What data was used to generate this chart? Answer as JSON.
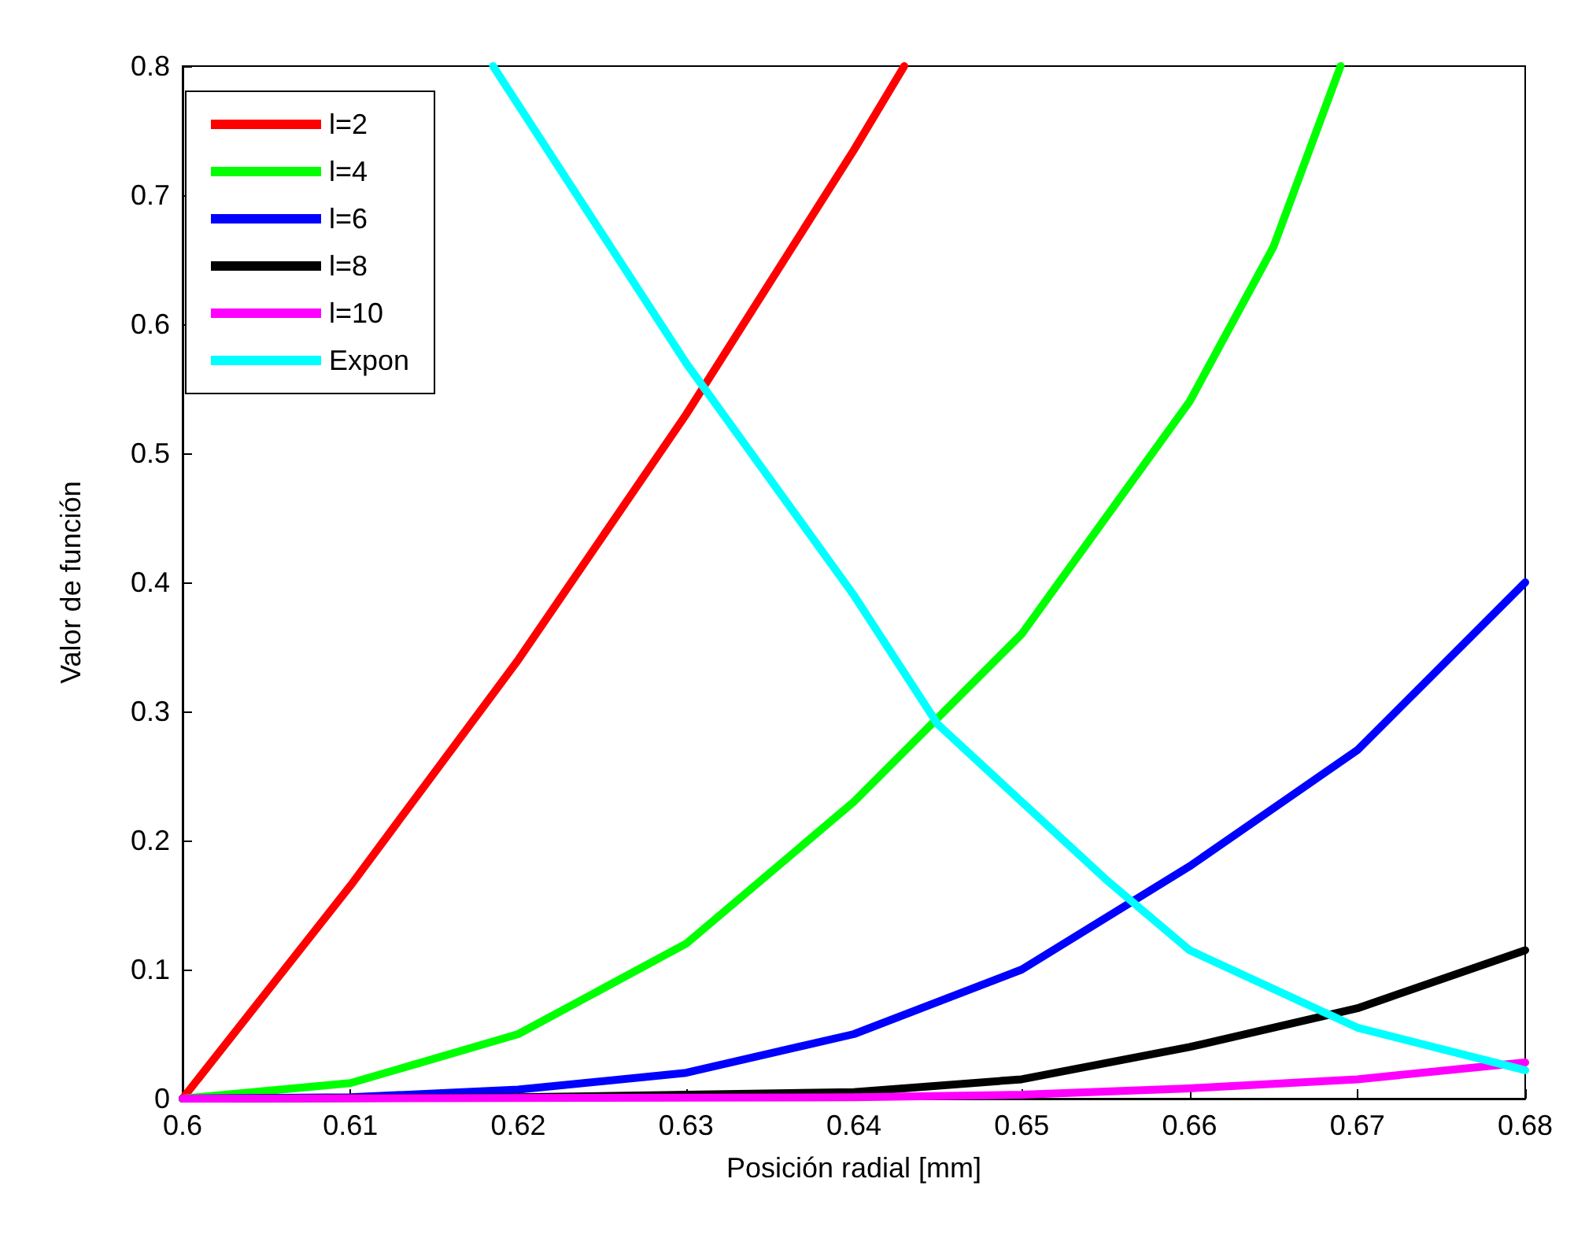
{
  "chart_data": {
    "type": "line",
    "xlabel": "Posición radial [mm]",
    "ylabel": "Valor de función",
    "xlim": [
      0.6,
      0.68
    ],
    "xticks": [
      0.6,
      0.61,
      0.62,
      0.63,
      0.64,
      0.65,
      0.66,
      0.67,
      0.68
    ],
    "ylim": [
      0,
      0.8
    ],
    "yticks": [
      0,
      0.1,
      0.2,
      0.3,
      0.4,
      0.5,
      0.6,
      0.7,
      0.8
    ],
    "grid": false,
    "legend": "top left",
    "marker": "none",
    "line_style": "solid",
    "series": [
      {
        "name": "l=2",
        "color": "#ff0000",
        "x": [
          0.6,
          0.61,
          0.62,
          0.63,
          0.64,
          0.643
        ],
        "values": [
          0,
          0.165,
          0.34,
          0.53,
          0.735,
          0.8
        ]
      },
      {
        "name": "l=4",
        "color": "#00ff00",
        "x": [
          0.6,
          0.61,
          0.62,
          0.63,
          0.64,
          0.65,
          0.66,
          0.665,
          0.669
        ],
        "values": [
          0,
          0.012,
          0.05,
          0.12,
          0.23,
          0.36,
          0.54,
          0.66,
          0.8
        ]
      },
      {
        "name": "l=6",
        "color": "#0000ff",
        "x": [
          0.6,
          0.61,
          0.62,
          0.63,
          0.64,
          0.65,
          0.66,
          0.67,
          0.68
        ],
        "values": [
          0,
          0.001,
          0.007,
          0.02,
          0.05,
          0.1,
          0.18,
          0.27,
          0.4
        ]
      },
      {
        "name": "l=8",
        "color": "#000000",
        "x": [
          0.6,
          0.62,
          0.64,
          0.65,
          0.66,
          0.67,
          0.68
        ],
        "values": [
          0,
          0.001,
          0.005,
          0.015,
          0.04,
          0.07,
          0.115
        ]
      },
      {
        "name": "l=10",
        "color": "#ff00ff",
        "x": [
          0.6,
          0.64,
          0.65,
          0.66,
          0.67,
          0.68
        ],
        "values": [
          0,
          0.001,
          0.003,
          0.008,
          0.015,
          0.028
        ]
      },
      {
        "name": "Expon",
        "color": "#00ffff",
        "x": [
          0.6185,
          0.62,
          0.63,
          0.64,
          0.645,
          0.65,
          0.655,
          0.66,
          0.67,
          0.68
        ],
        "values": [
          0.8,
          0.77,
          0.57,
          0.39,
          0.29,
          0.23,
          0.17,
          0.115,
          0.055,
          0.022
        ]
      }
    ]
  }
}
